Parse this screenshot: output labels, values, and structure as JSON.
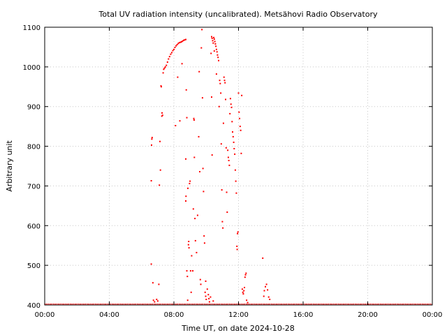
{
  "chart_data": {
    "type": "scatter",
    "title": "Total UV radiation intensity (uncalibrated). Metsähovi Radio Observatory",
    "xlabel": "Time UT, on date 2024-10-28",
    "ylabel": "Arbitrary unit",
    "xlim": [
      "00:00",
      "24:00"
    ],
    "ylim": [
      400,
      1100
    ],
    "xticks": [
      "00:00",
      "04:00",
      "08:00",
      "12:00",
      "16:00",
      "20:00",
      "00:00"
    ],
    "yticks": [
      400,
      500,
      600,
      700,
      800,
      900,
      1000,
      1100
    ],
    "grid": true,
    "series": [
      {
        "color": "#ff0000",
        "marker": "dot",
        "baseline": {
          "from": "00:00",
          "to": "24:00",
          "value": 400
        },
        "points": [
          [
            "06:36",
            503
          ],
          [
            "06:36",
            713
          ],
          [
            "06:37",
            803
          ],
          [
            "06:38",
            818
          ],
          [
            "06:39",
            822
          ],
          [
            "06:42",
            456
          ],
          [
            "06:44",
            412
          ],
          [
            "06:48",
            408
          ],
          [
            "07:06",
            702
          ],
          [
            "07:08",
            812
          ],
          [
            "07:10",
            740
          ],
          [
            "07:12",
            952
          ],
          [
            "07:13",
            950
          ],
          [
            "07:15",
            876
          ],
          [
            "07:16",
            884
          ],
          [
            "07:18",
            878
          ],
          [
            "07:20",
            985
          ],
          [
            "07:22",
            994
          ],
          [
            "07:25",
            997
          ],
          [
            "07:28",
            1000
          ],
          [
            "07:32",
            1004
          ],
          [
            "07:36",
            1012
          ],
          [
            "07:40",
            1020
          ],
          [
            "07:44",
            1026
          ],
          [
            "07:48",
            1032
          ],
          [
            "07:52",
            1036
          ],
          [
            "07:56",
            1041
          ],
          [
            "08:00",
            1044
          ],
          [
            "08:04",
            1049
          ],
          [
            "08:08",
            1053
          ],
          [
            "08:12",
            1056
          ],
          [
            "08:16",
            1059
          ],
          [
            "08:20",
            1061
          ],
          [
            "08:24",
            1062
          ],
          [
            "08:28",
            1063
          ],
          [
            "08:32",
            1065
          ],
          [
            "08:36",
            1067
          ],
          [
            "08:40",
            1068
          ],
          [
            "08:44",
            1069
          ],
          [
            "08:06",
            852
          ],
          [
            "08:14",
            974
          ],
          [
            "08:22",
            864
          ],
          [
            "08:30",
            1008
          ],
          [
            "08:44",
            768
          ],
          [
            "08:46",
            942
          ],
          [
            "08:48",
            872
          ],
          [
            "08:44",
            662
          ],
          [
            "08:45",
            674
          ],
          [
            "08:48",
            486
          ],
          [
            "08:50",
            472
          ],
          [
            "08:51",
            412
          ],
          [
            "08:52",
            694
          ],
          [
            "08:54",
            552
          ],
          [
            "08:55",
            560
          ],
          [
            "08:56",
            544
          ],
          [
            "08:58",
            706
          ],
          [
            "09:00",
            712
          ],
          [
            "09:02",
            486
          ],
          [
            "09:04",
            432
          ],
          [
            "09:06",
            524
          ],
          [
            "09:10",
            486
          ],
          [
            "09:12",
            642
          ],
          [
            "09:14",
            870
          ],
          [
            "09:15",
            866
          ],
          [
            "09:16",
            772
          ],
          [
            "09:18",
            618
          ],
          [
            "09:20",
            562
          ],
          [
            "09:24",
            532
          ],
          [
            "09:28",
            626
          ],
          [
            "09:32",
            824
          ],
          [
            "09:34",
            988
          ],
          [
            "09:36",
            736
          ],
          [
            "09:38",
            464
          ],
          [
            "09:40",
            452
          ],
          [
            "09:42",
            1048
          ],
          [
            "09:44",
            1094
          ],
          [
            "09:46",
            922
          ],
          [
            "09:48",
            744
          ],
          [
            "09:50",
            686
          ],
          [
            "09:52",
            574
          ],
          [
            "09:54",
            556
          ],
          [
            "09:56",
            432
          ],
          [
            "09:58",
            422
          ],
          [
            "10:00",
            414
          ],
          [
            "10:04",
            440
          ],
          [
            "10:08",
            426
          ],
          [
            "10:12",
            408
          ],
          [
            "10:16",
            420
          ],
          [
            "10:20",
            1076
          ],
          [
            "10:22",
            1072
          ],
          [
            "10:24",
            1066
          ],
          [
            "10:26",
            1060
          ],
          [
            "10:28",
            1074
          ],
          [
            "10:30",
            1070
          ],
          [
            "10:32",
            1064
          ],
          [
            "10:34",
            1058
          ],
          [
            "10:36",
            1052
          ],
          [
            "10:38",
            1044
          ],
          [
            "10:40",
            1038
          ],
          [
            "10:42",
            1030
          ],
          [
            "10:44",
            1024
          ],
          [
            "10:46",
            1016
          ],
          [
            "10:18",
            1034
          ],
          [
            "10:20",
            924
          ],
          [
            "10:22",
            778
          ],
          [
            "10:30",
            1040
          ],
          [
            "10:38",
            982
          ],
          [
            "10:48",
            900
          ],
          [
            "10:50",
            966
          ],
          [
            "10:52",
            958
          ],
          [
            "10:54",
            934
          ],
          [
            "10:56",
            806
          ],
          [
            "10:58",
            690
          ],
          [
            "11:00",
            610
          ],
          [
            "11:02",
            594
          ],
          [
            "11:04",
            858
          ],
          [
            "11:06",
            974
          ],
          [
            "11:08",
            966
          ],
          [
            "11:10",
            960
          ],
          [
            "11:12",
            918
          ],
          [
            "11:14",
            796
          ],
          [
            "11:16",
            684
          ],
          [
            "11:18",
            634
          ],
          [
            "11:20",
            790
          ],
          [
            "11:22",
            772
          ],
          [
            "11:24",
            764
          ],
          [
            "11:26",
            752
          ],
          [
            "11:28",
            882
          ],
          [
            "11:30",
            920
          ],
          [
            "11:32",
            906
          ],
          [
            "11:34",
            898
          ],
          [
            "11:36",
            862
          ],
          [
            "11:38",
            836
          ],
          [
            "11:40",
            824
          ],
          [
            "11:42",
            810
          ],
          [
            "11:44",
            794
          ],
          [
            "11:46",
            780
          ],
          [
            "11:48",
            740
          ],
          [
            "11:50",
            712
          ],
          [
            "11:52",
            682
          ],
          [
            "11:54",
            548
          ],
          [
            "11:55",
            540
          ],
          [
            "11:56",
            580
          ],
          [
            "11:58",
            584
          ],
          [
            "12:00",
            934
          ],
          [
            "12:02",
            886
          ],
          [
            "12:04",
            870
          ],
          [
            "12:06",
            850
          ],
          [
            "12:08",
            840
          ],
          [
            "12:10",
            782
          ],
          [
            "12:12",
            928
          ],
          [
            "12:14",
            440
          ],
          [
            "12:16",
            432
          ],
          [
            "12:18",
            428
          ],
          [
            "12:20",
            436
          ],
          [
            "12:22",
            444
          ],
          [
            "12:24",
            470
          ],
          [
            "12:26",
            476
          ],
          [
            "12:28",
            480
          ],
          [
            "12:30",
            412
          ],
          [
            "12:34",
            406
          ],
          [
            "13:30",
            518
          ],
          [
            "13:36",
            436
          ],
          [
            "13:40",
            446
          ],
          [
            "13:44",
            452
          ],
          [
            "13:48",
            438
          ],
          [
            "13:52",
            420
          ],
          [
            "13:56",
            414
          ],
          [
            "07:04",
            452
          ],
          [
            "07:00",
            410
          ],
          [
            "06:56",
            414
          ],
          [
            "09:58",
            460
          ],
          [
            "10:10",
            416
          ],
          [
            "10:26",
            410
          ],
          [
            "13:34",
            422
          ]
        ]
      }
    ]
  }
}
